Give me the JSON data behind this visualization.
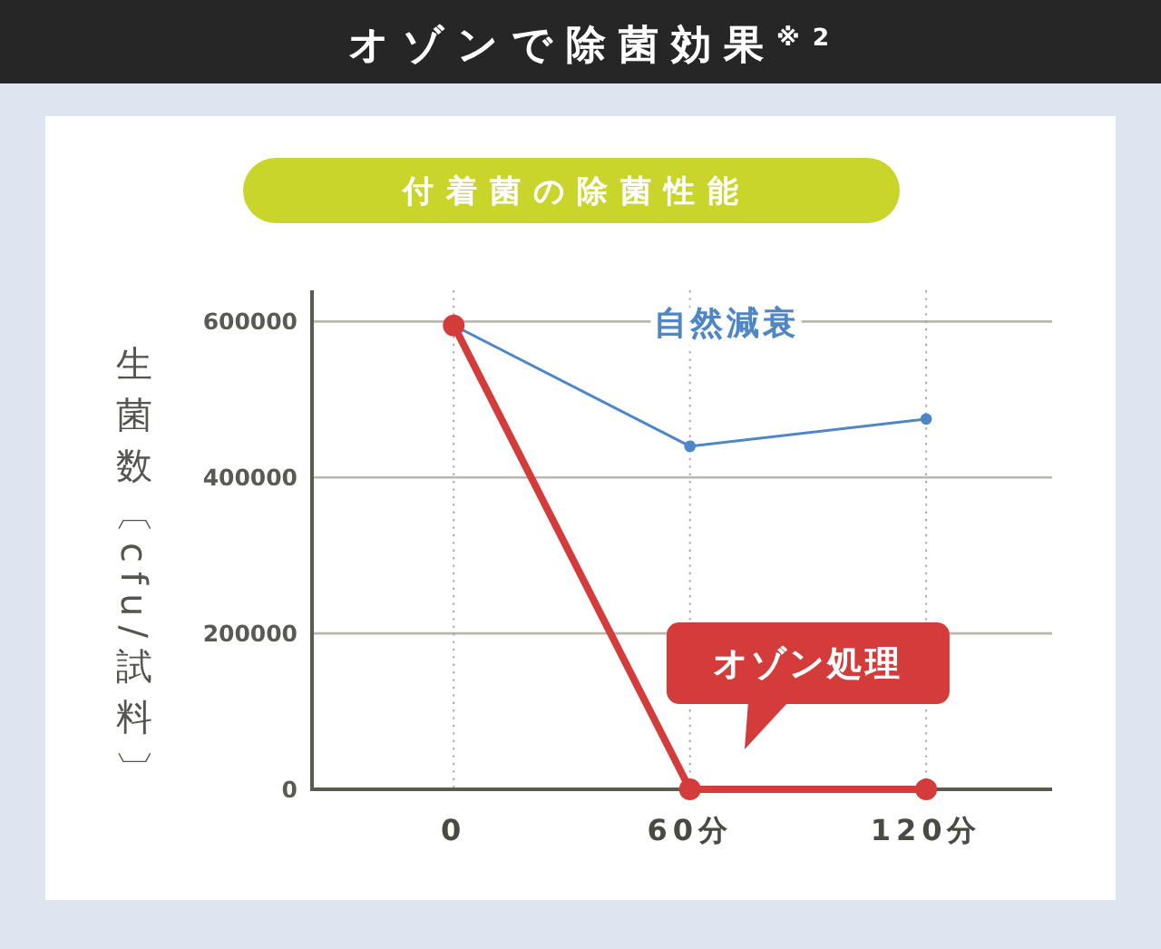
{
  "chart_data": {
    "type": "line",
    "title": "オゾンで除菌効果$^{※2}$",
    "subtitle": "付着菌の除菌性能",
    "ylabel": "生菌数〔cfu/試料〕",
    "x": [
      0,
      60,
      120
    ],
    "xlim": [
      -36,
      152
    ],
    "xticks": [
      0,
      {
        "value": 60,
        "label": "60分"
      },
      {
        "value": 120,
        "label": "120分"
      }
    ],
    "ylim": [
      0,
      640000
    ],
    "yticks": [
      0,
      200000,
      400000,
      600000
    ],
    "grid": true,
    "marker": "circle",
    "line_style": "solid",
    "legend": false,
    "series": [
      {
        "name": "自然減衰",
        "color": "#4f86c6",
        "values": [
          595000,
          440000,
          475000
        ]
      },
      {
        "name": "オゾン処理",
        "color": "#d43c3c",
        "values": [
          595000,
          0,
          0
        ]
      }
    ]
  }
}
